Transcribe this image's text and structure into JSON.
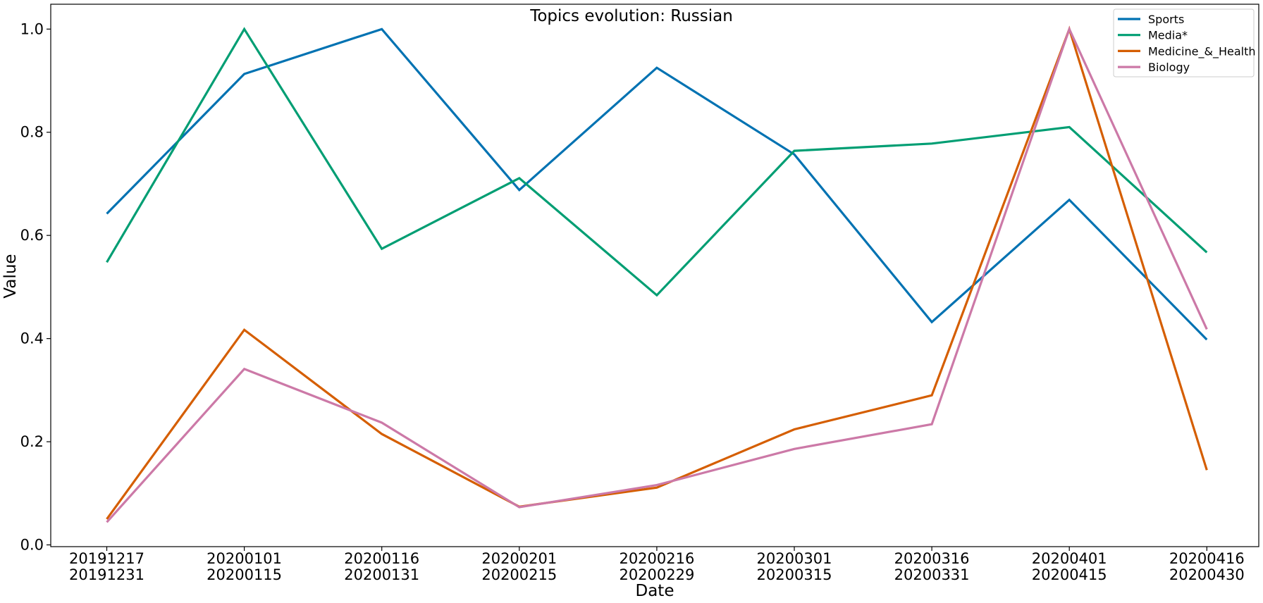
{
  "chart_data": {
    "type": "line",
    "title": "Topics evolution: Russian",
    "xlabel": "Date",
    "ylabel": "Value",
    "categories": [
      [
        "20191217",
        "20191231"
      ],
      [
        "20200101",
        "20200115"
      ],
      [
        "20200116",
        "20200131"
      ],
      [
        "20200201",
        "20200215"
      ],
      [
        "20200216",
        "20200229"
      ],
      [
        "20200301",
        "20200315"
      ],
      [
        "20200316",
        "20200331"
      ],
      [
        "20200401",
        "20200415"
      ],
      [
        "20200416",
        "20200430"
      ]
    ],
    "ylim": [
      0.0,
      1.05
    ],
    "yticks": [
      "0.0",
      "0.2",
      "0.4",
      "0.6",
      "0.8",
      "1.0"
    ],
    "grid": false,
    "legend_position": "top-right",
    "series": [
      {
        "name": "Sports",
        "color": "#0072B2",
        "values": [
          0.642,
          0.913,
          1.0,
          0.688,
          0.925,
          0.757,
          0.432,
          0.669,
          0.398
        ]
      },
      {
        "name": "Media*",
        "color": "#009E73",
        "values": [
          0.548,
          1.0,
          0.574,
          0.711,
          0.484,
          0.764,
          0.778,
          0.81,
          0.567
        ]
      },
      {
        "name": "Medicine_&_Health",
        "color": "#D55E00",
        "values": [
          0.05,
          0.417,
          0.215,
          0.074,
          0.111,
          0.224,
          0.29,
          1.0,
          0.145
        ]
      },
      {
        "name": "Biology",
        "color": "#CC79A7",
        "values": [
          0.044,
          0.341,
          0.237,
          0.073,
          0.116,
          0.186,
          0.234,
          1.0,
          0.418
        ]
      }
    ]
  }
}
